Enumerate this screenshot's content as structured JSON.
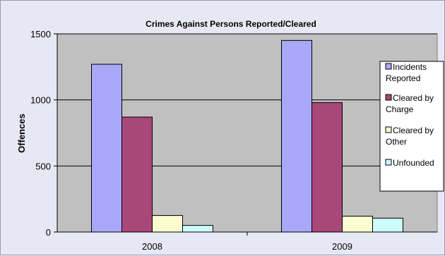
{
  "chart_data": {
    "type": "bar",
    "title": "Crimes Against Persons Reported/Cleared",
    "xlabel": "",
    "ylabel": "Offences",
    "categories": [
      "2008",
      "2009"
    ],
    "ylim": [
      0,
      1500
    ],
    "yticks": [
      0,
      500,
      1000,
      1500
    ],
    "grid": true,
    "legend_position": "right",
    "plot_background": "#c0c0c0",
    "series": [
      {
        "name": [
          "Incidents",
          "Reported"
        ],
        "color": "#a8a8f8",
        "values": [
          1270,
          1450
        ]
      },
      {
        "name": [
          "Cleared by",
          "Charge"
        ],
        "color": "#a84878",
        "values": [
          870,
          980
        ]
      },
      {
        "name": [
          "Cleared by",
          "Other"
        ],
        "color": "#fcfcd0",
        "values": [
          125,
          120
        ]
      },
      {
        "name": [
          "Unfounded"
        ],
        "color": "#ccfcfc",
        "values": [
          50,
          105
        ]
      }
    ]
  }
}
